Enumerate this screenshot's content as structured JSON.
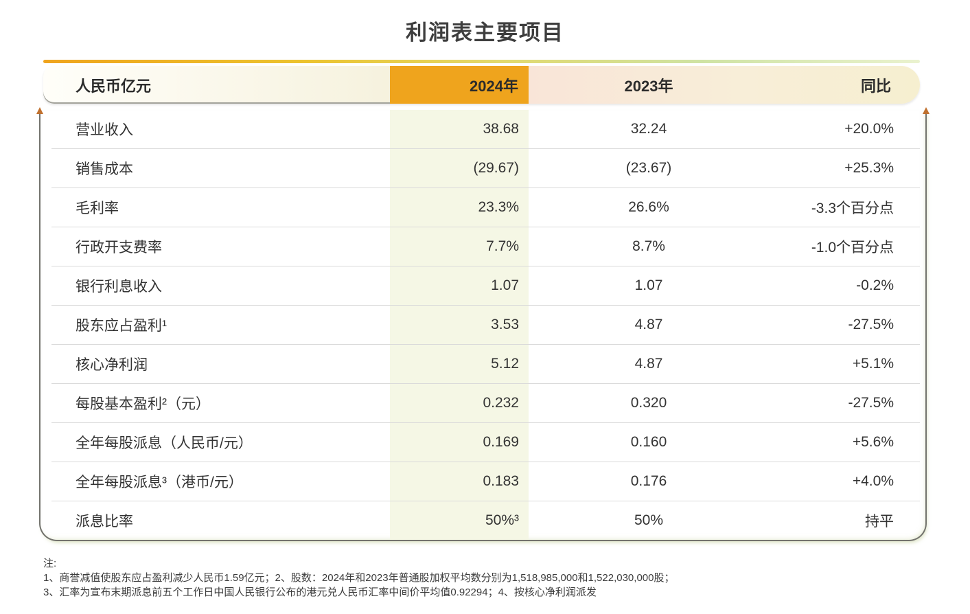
{
  "title": "利润表主要项目",
  "chart_data": {
    "type": "table",
    "title": "利润表主要项目",
    "columns": [
      "人民币亿元",
      "2024年",
      "2023年",
      "同比"
    ],
    "rows": [
      [
        "营业收入",
        "38.68",
        "32.24",
        "+20.0%"
      ],
      [
        "销售成本",
        "(29.67)",
        "(23.67)",
        "+25.3%"
      ],
      [
        "毛利率",
        "23.3%",
        "26.6%",
        "-3.3个百分点"
      ],
      [
        "行政开支费率",
        "7.7%",
        "8.7%",
        "-1.0个百分点"
      ],
      [
        "银行利息收入",
        "1.07",
        "1.07",
        "-0.2%"
      ],
      [
        "股东应占盈利¹",
        "3.53",
        "4.87",
        "-27.5%"
      ],
      [
        "核心净利润",
        "5.12",
        "4.87",
        "+5.1%"
      ],
      [
        "每股基本盈利²（元）",
        "0.232",
        "0.320",
        "-27.5%"
      ],
      [
        "全年每股派息（人民币/元）",
        "0.169",
        "0.160",
        "+5.6%"
      ],
      [
        "全年每股派息³（港币/元）",
        "0.183",
        "0.176",
        "+4.0%"
      ],
      [
        "派息比率",
        "50%³",
        "50%",
        "持平"
      ]
    ],
    "layout_hints": {
      "col_2024_alignment": "right",
      "col_2023_alignment": "center",
      "col_yoy_alignment": "right",
      "highlighted_column": "2024年"
    }
  },
  "notes": {
    "label": "注:",
    "lines": [
      "1、商誉减值使股东应占盈利减少人民币1.59亿元；2、股数：2024年和2023年普通股加权平均数分别为1,518,985,000和1,522,030,000股；",
      "3、汇率为宣布末期派息前五个工作日中国人民银行公布的港元兑人民币汇率中间价平均值0.92294；4、按核心净利润派发"
    ]
  },
  "colors": {
    "accent_orange": "#EFA41D",
    "band_green": "#F5F7E5",
    "header_pink": "#F9E5D8",
    "header_cream": "#F6EFD0",
    "border_gray": "#73736D",
    "arrow_orange": "#C0702E",
    "separator": "#DADADA",
    "text_dark": "#333333"
  }
}
